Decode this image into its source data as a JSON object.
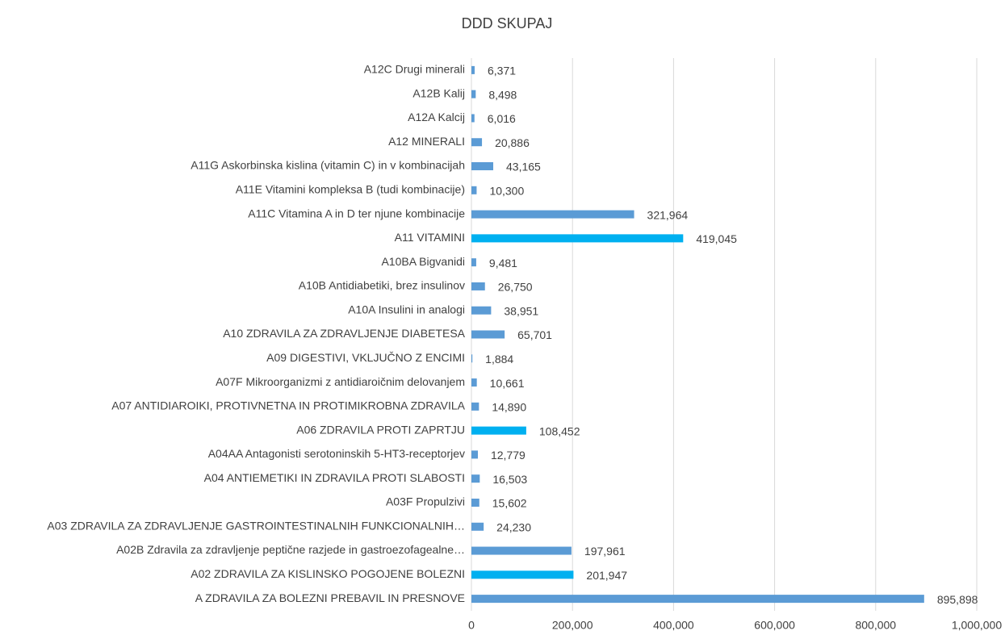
{
  "chart_data": {
    "type": "bar",
    "orientation": "horizontal",
    "title": "DDD SKUPAJ",
    "categories": [
      "A12C Drugi minerali",
      "A12B Kalij",
      "A12A Kalcij",
      "A12 MINERALI",
      "A11G Askorbinska kislina (vitamin C) in v kombinacijah",
      "A11E Vitamini kompleksa B (tudi kombinacije)",
      "A11C Vitamina A in D ter njune kombinacije",
      "A11 VITAMINI",
      "A10BA Bigvanidi",
      "A10B Antidiabetiki, brez insulinov",
      "A10A Insulini in analogi",
      "A10 ZDRAVILA ZA ZDRAVLJENJE DIABETESA",
      "A09 DIGESTIVI, VKLJUČNO Z ENCIMI",
      "A07F Mikroorganizmi z antidiaroičnim delovanjem",
      "A07 ANTIDIAROIKI, PROTIVNETNA IN PROTIMIKROBNA ZDRAVILA",
      "A06 ZDRAVILA PROTI ZAPRTJU",
      "A04AA Antagonisti serotoninskih 5-HT3-receptorjev",
      "A04 ANTIEMETIKI IN ZDRAVILA PROTI SLABOSTI",
      "A03F Propulzivi",
      "A03 ZDRAVILA ZA ZDRAVLJENJE GASTROINTESTINALNIH FUNKCIONALNIH…",
      "A02B Zdravila za zdravljenje peptične razjede in gastroezofagealne…",
      "A02 ZDRAVILA ZA KISLINSKO POGOJENE BOLEZNI",
      "A ZDRAVILA ZA BOLEZNI PREBAVIL IN PRESNOVE"
    ],
    "values": [
      6371,
      8498,
      6016,
      20886,
      43165,
      10300,
      321964,
      419045,
      9481,
      26750,
      38951,
      65701,
      1884,
      10661,
      14890,
      108452,
      12779,
      16503,
      15602,
      24230,
      197961,
      201947,
      895898
    ],
    "value_labels": [
      "6,371",
      "8,498",
      "6,016",
      "20,886",
      "43,165",
      "10,300",
      "321,964",
      "419,045",
      "9,481",
      "26,750",
      "38,951",
      "65,701",
      "1,884",
      "10,661",
      "14,890",
      "108,452",
      "12,779",
      "16,503",
      "15,602",
      "24,230",
      "197,961",
      "201,947",
      "895,898"
    ],
    "colors": [
      "#5b9bd5",
      "#5b9bd5",
      "#5b9bd5",
      "#5b9bd5",
      "#5b9bd5",
      "#5b9bd5",
      "#5b9bd5",
      "#00b0f0",
      "#5b9bd5",
      "#5b9bd5",
      "#5b9bd5",
      "#5b9bd5",
      "#5b9bd5",
      "#5b9bd5",
      "#5b9bd5",
      "#00b0f0",
      "#5b9bd5",
      "#5b9bd5",
      "#5b9bd5",
      "#5b9bd5",
      "#5b9bd5",
      "#00b0f0",
      "#5b9bd5"
    ],
    "xlim": [
      0,
      1000000
    ],
    "xticks": [
      0,
      {
        "value": 200000,
        "label": "200,000"
      },
      {
        "value": 400000,
        "label": "400,000"
      },
      {
        "value": 600000,
        "label": "600,000"
      },
      {
        "value": 800000,
        "label": "800,000"
      },
      {
        "value": 1000000,
        "label": "1,000,000"
      }
    ],
    "grid": true
  }
}
